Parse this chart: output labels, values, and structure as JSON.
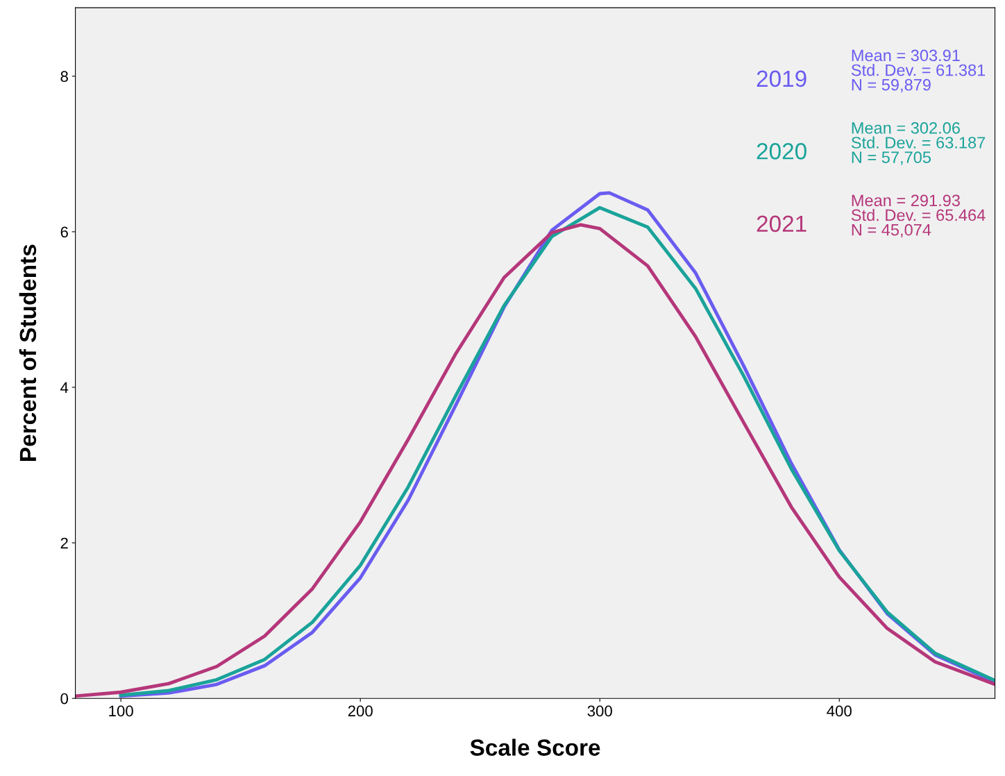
{
  "chart_data": {
    "type": "line",
    "xlabel": "Scale Score",
    "ylabel": "Percent of Students",
    "xlim": [
      81,
      465
    ],
    "ylim": [
      0,
      8.88
    ],
    "xticks": [
      100,
      200,
      300,
      400
    ],
    "yticks": [
      0,
      2,
      4,
      6,
      8
    ],
    "grid": false,
    "legend": false,
    "marker": "none",
    "line_style": "solid",
    "series": [
      {
        "name": "2019",
        "color": "#6a5cf0",
        "x": [
          100,
          120,
          140,
          160,
          180,
          200,
          220,
          240,
          260,
          280,
          300,
          304,
          320,
          340,
          360,
          380,
          400,
          420,
          440,
          465
        ],
        "values": [
          0.03,
          0.07,
          0.18,
          0.42,
          0.85,
          1.55,
          2.55,
          3.78,
          5.03,
          6.02,
          6.49,
          6.5,
          6.28,
          5.47,
          4.28,
          3.02,
          1.91,
          1.09,
          0.56,
          0.21
        ]
      },
      {
        "name": "2020",
        "color": "#1aa39a",
        "x": [
          100,
          120,
          140,
          160,
          180,
          200,
          220,
          240,
          260,
          280,
          300,
          320,
          340,
          360,
          380,
          400,
          420,
          440,
          465
        ],
        "values": [
          0.04,
          0.1,
          0.24,
          0.5,
          0.98,
          1.71,
          2.72,
          3.9,
          5.05,
          5.94,
          6.31,
          6.06,
          5.27,
          4.15,
          2.95,
          1.9,
          1.11,
          0.58,
          0.23
        ]
      },
      {
        "name": "2021",
        "color": "#b5377a",
        "x": [
          81,
          100,
          120,
          140,
          160,
          180,
          200,
          220,
          240,
          260,
          280,
          292,
          300,
          320,
          340,
          360,
          380,
          400,
          420,
          440,
          465
        ],
        "values": [
          0.03,
          0.08,
          0.19,
          0.41,
          0.8,
          1.41,
          2.27,
          3.33,
          4.44,
          5.41,
          5.99,
          6.09,
          6.04,
          5.56,
          4.65,
          3.55,
          2.46,
          1.56,
          0.9,
          0.47,
          0.18
        ]
      }
    ],
    "annotations": [
      "Mean = 303.91\nStd. Dev. = 61.381\nN = 59,879",
      "Mean = 302.06\nStd. Dev. = 63.187\nN = 57,705",
      "Mean = 291.93\nStd. Dev. = 65.464\nN = 45,074"
    ]
  }
}
